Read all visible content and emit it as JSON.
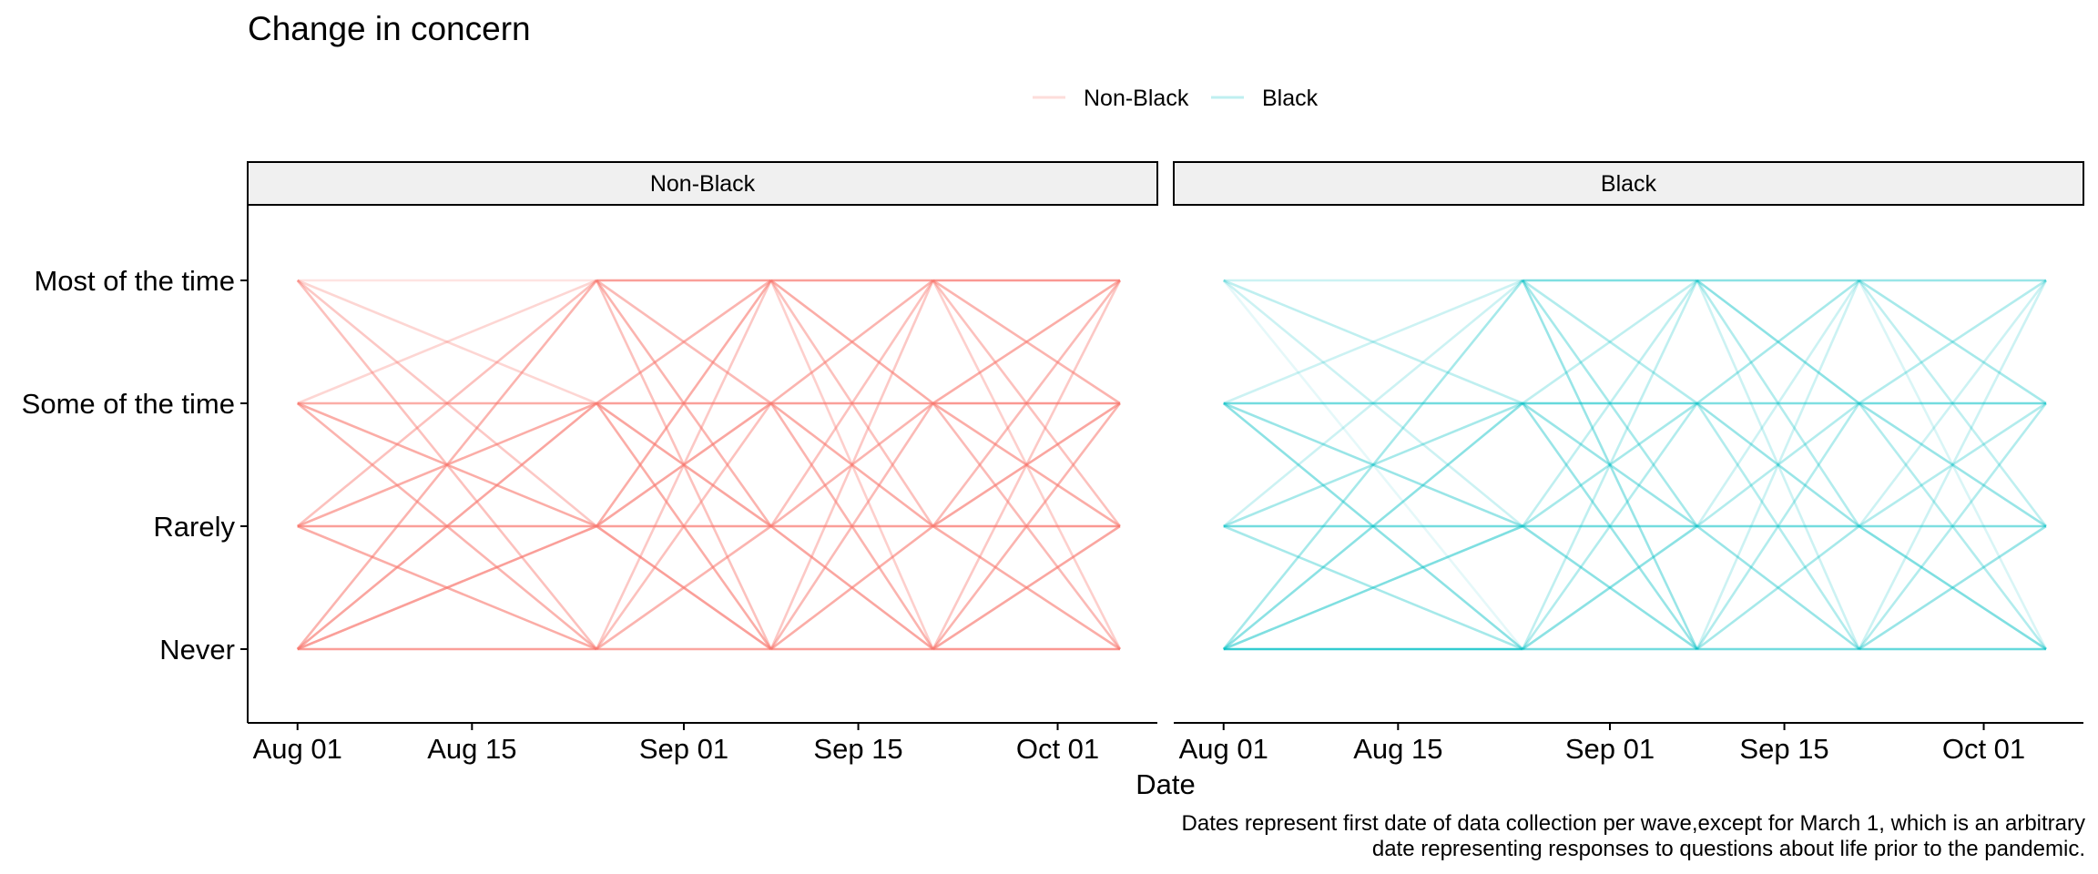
{
  "chart_data": {
    "type": "line",
    "title": "Change in concern",
    "xlabel": "Date",
    "caption_lines": [
      "Dates represent first date of data collection per wave,except for March 1, which is an arbitrary",
      "date representing responses to questions about life prior to the pandemic."
    ],
    "legend_position": "top",
    "legend": [
      {
        "name": "Non-Black",
        "color": "#F8766D"
      },
      {
        "name": "Black",
        "color": "#00BFC4"
      }
    ],
    "y_levels": [
      "Never",
      "Rarely",
      "Some of the time",
      "Most of the time"
    ],
    "x_ticks": [
      "Aug 01",
      "Aug 15",
      "Sep 01",
      "Sep 15",
      "Oct 01"
    ],
    "x_tick_dates": [
      "2020-08-01",
      "2020-08-15",
      "2020-09-01",
      "2020-09-15",
      "2020-10-01"
    ],
    "xlim": [
      "2020-07-28",
      "2020-10-09"
    ],
    "waves": [
      "2020-08-01",
      "2020-08-25",
      "2020-09-08",
      "2020-09-21",
      "2020-10-06"
    ],
    "panels": [
      {
        "name": "Non-Black",
        "color": "#F8766D",
        "transitions": [
          [
            [
              0.7,
              0.7,
              0.65,
              0.55
            ],
            [
              0.6,
              0.7,
              0.6,
              0.45
            ],
            [
              0.55,
              0.6,
              0.6,
              0.3
            ],
            [
              0.45,
              0.4,
              0.3,
              0.2
            ]
          ],
          [
            [
              0.65,
              0.55,
              0.45,
              0.4
            ],
            [
              0.7,
              0.7,
              0.65,
              0.6
            ],
            [
              0.6,
              0.65,
              0.7,
              0.55
            ],
            [
              0.45,
              0.55,
              0.5,
              0.7
            ]
          ],
          [
            [
              0.7,
              0.6,
              0.5,
              0.4
            ],
            [
              0.65,
              0.7,
              0.55,
              0.45
            ],
            [
              0.55,
              0.6,
              0.7,
              0.55
            ],
            [
              0.35,
              0.45,
              0.6,
              0.7
            ]
          ],
          [
            [
              0.75,
              0.65,
              0.55,
              0.4
            ],
            [
              0.6,
              0.75,
              0.65,
              0.5
            ],
            [
              0.5,
              0.6,
              0.75,
              0.6
            ],
            [
              0.35,
              0.45,
              0.55,
              0.75
            ]
          ]
        ]
      },
      {
        "name": "Black",
        "color": "#00BFC4",
        "transitions": [
          [
            [
              0.8,
              0.5,
              0.45,
              0.35
            ],
            [
              0.35,
              0.55,
              0.35,
              0.2
            ],
            [
              0.45,
              0.4,
              0.55,
              0.2
            ],
            [
              0.1,
              0.2,
              0.25,
              0.2
            ]
          ],
          [
            [
              0.55,
              0.45,
              0.3,
              0.25
            ],
            [
              0.45,
              0.55,
              0.35,
              0.25
            ],
            [
              0.4,
              0.4,
              0.6,
              0.25
            ],
            [
              0.4,
              0.35,
              0.3,
              0.5
            ]
          ],
          [
            [
              0.55,
              0.35,
              0.3,
              0.2
            ],
            [
              0.4,
              0.55,
              0.3,
              0.2
            ],
            [
              0.3,
              0.4,
              0.5,
              0.35
            ],
            [
              0.2,
              0.3,
              0.45,
              0.45
            ]
          ],
          [
            [
              0.6,
              0.4,
              0.3,
              0.2
            ],
            [
              0.5,
              0.5,
              0.3,
              0.2
            ],
            [
              0.3,
              0.4,
              0.55,
              0.3
            ],
            [
              0.15,
              0.25,
              0.35,
              0.4
            ]
          ]
        ]
      }
    ]
  }
}
